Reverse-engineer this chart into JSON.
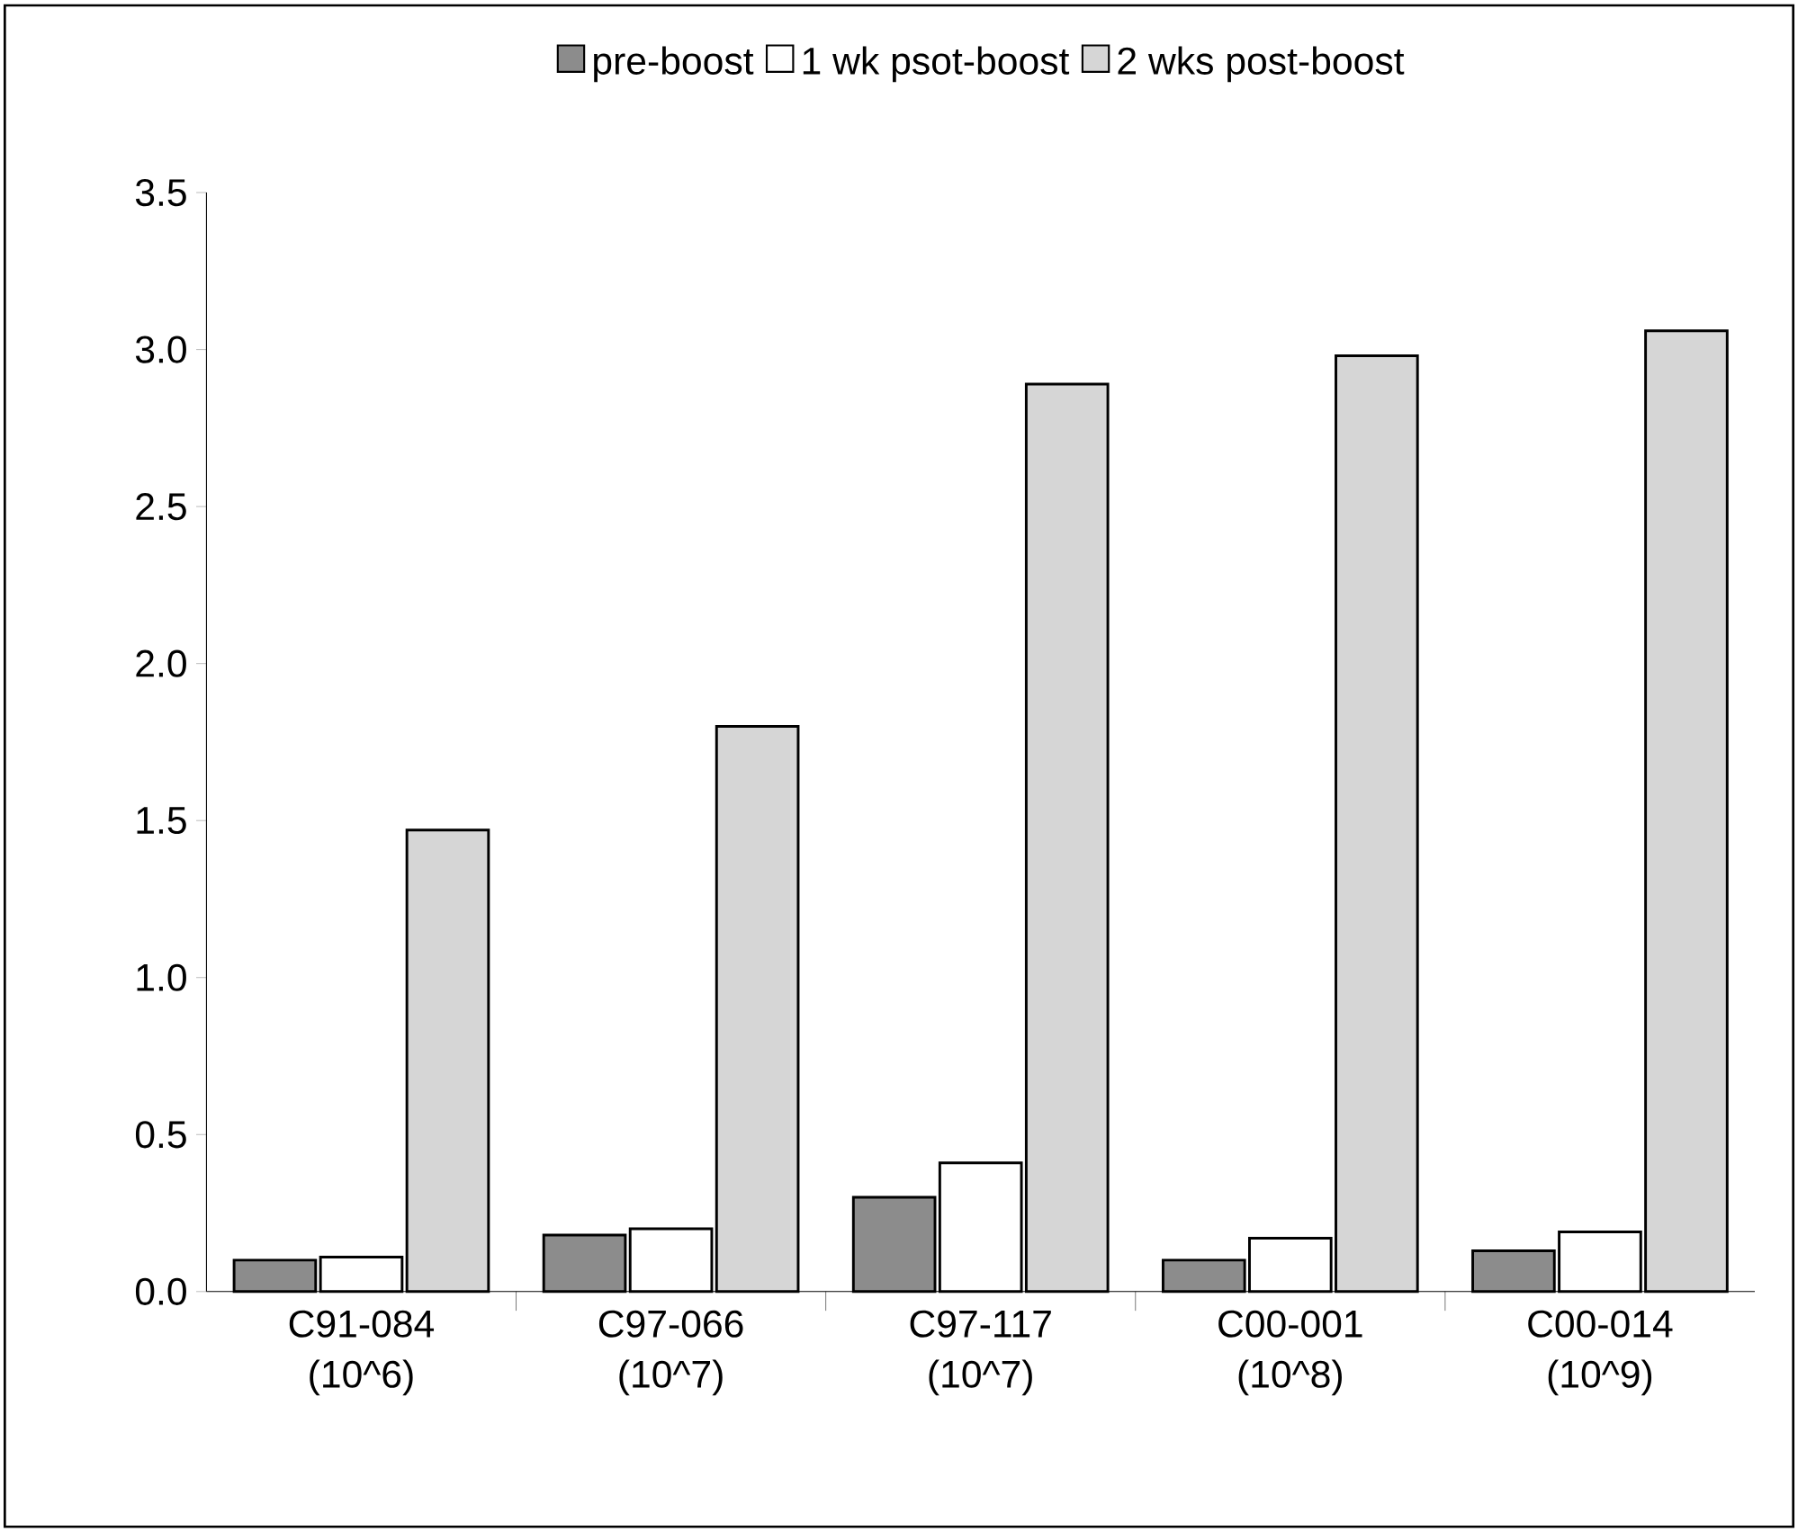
{
  "chart_data": {
    "type": "bar",
    "categories": [
      "C91-084 (10^6)",
      "C97-066 (10^7)",
      "C97-117 (10^7)",
      "C00-001 (10^8)",
      "C00-014 (10^9)"
    ],
    "series": [
      {
        "name": "pre-boost",
        "color": "#8c8c8c",
        "values": [
          0.1,
          0.18,
          0.3,
          0.1,
          0.13
        ]
      },
      {
        "name": "1 wk psot-boost",
        "color": "#ffffff",
        "values": [
          0.11,
          0.2,
          0.41,
          0.17,
          0.19
        ]
      },
      {
        "name": "2 wks post-boost",
        "color": "#d6d6d6",
        "values": [
          1.47,
          1.8,
          2.89,
          2.98,
          3.06
        ]
      }
    ],
    "ylim": [
      0,
      3.5
    ],
    "yticks": [
      {
        "value": 0,
        "label": "0.0"
      },
      0.5,
      {
        "value": 1,
        "label": "1.0"
      },
      1.5,
      {
        "value": 2,
        "label": "2.0"
      },
      2.5,
      {
        "value": 3,
        "label": "3.0"
      },
      3.5
    ],
    "legend": "top",
    "grid": false
  }
}
